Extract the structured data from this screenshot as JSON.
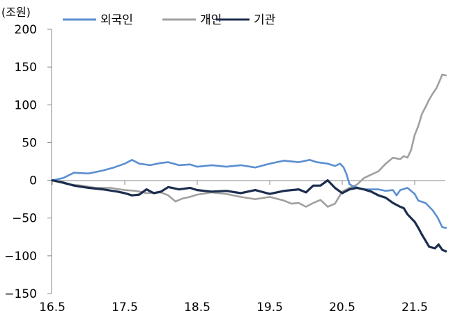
{
  "chart_data": {
    "type": "line",
    "unit_label": "(조원)",
    "xlabel": "",
    "ylabel": "",
    "x_ticks": [
      "16.5",
      "17.5",
      "18.5",
      "19.5",
      "20.5",
      "21.5"
    ],
    "y_ticks": [
      200,
      150,
      100,
      50,
      0,
      -50,
      -100,
      -150
    ],
    "y_tick_labels": [
      "200",
      "150",
      "100",
      "50",
      "0",
      "−50",
      "−100",
      "−150"
    ],
    "ylim": [
      -150,
      200
    ],
    "xlim": [
      "16.5",
      "21.8"
    ],
    "x_unit": "years since 16.5",
    "grid": false,
    "legend_position": "top",
    "series": [
      {
        "name": "외국인",
        "color": "#5b8fd0",
        "points": [
          [
            0,
            0
          ],
          [
            0.15,
            3
          ],
          [
            0.3,
            10
          ],
          [
            0.5,
            9
          ],
          [
            0.7,
            13
          ],
          [
            0.85,
            17
          ],
          [
            1.0,
            22
          ],
          [
            1.1,
            27
          ],
          [
            1.2,
            22
          ],
          [
            1.35,
            20
          ],
          [
            1.5,
            23
          ],
          [
            1.6,
            24
          ],
          [
            1.75,
            20
          ],
          [
            1.9,
            21
          ],
          [
            2.0,
            18
          ],
          [
            2.2,
            20
          ],
          [
            2.4,
            18
          ],
          [
            2.6,
            20
          ],
          [
            2.8,
            17
          ],
          [
            3.0,
            22
          ],
          [
            3.2,
            26
          ],
          [
            3.4,
            24
          ],
          [
            3.55,
            27
          ],
          [
            3.65,
            24
          ],
          [
            3.8,
            22
          ],
          [
            3.9,
            19
          ],
          [
            3.97,
            22
          ],
          [
            4.02,
            17
          ],
          [
            4.06,
            8
          ],
          [
            4.1,
            -5
          ],
          [
            4.15,
            -8
          ],
          [
            4.3,
            -12
          ],
          [
            4.5,
            -12
          ],
          [
            4.6,
            -14
          ],
          [
            4.7,
            -13
          ],
          [
            4.75,
            -20
          ],
          [
            4.8,
            -13
          ],
          [
            4.9,
            -10
          ],
          [
            5.0,
            -18
          ],
          [
            5.05,
            -27
          ],
          [
            5.15,
            -30
          ],
          [
            5.25,
            -40
          ],
          [
            5.32,
            -50
          ],
          [
            5.38,
            -62
          ],
          [
            5.43,
            -63
          ]
        ]
      },
      {
        "name": "개인",
        "color": "#a0a0a0",
        "points": [
          [
            0,
            0
          ],
          [
            0.2,
            -5
          ],
          [
            0.4,
            -7
          ],
          [
            0.6,
            -10
          ],
          [
            0.8,
            -10
          ],
          [
            1.0,
            -13
          ],
          [
            1.15,
            -14
          ],
          [
            1.3,
            -17
          ],
          [
            1.5,
            -16
          ],
          [
            1.6,
            -20
          ],
          [
            1.7,
            -28
          ],
          [
            1.8,
            -24
          ],
          [
            1.9,
            -22
          ],
          [
            2.0,
            -19
          ],
          [
            2.2,
            -16
          ],
          [
            2.4,
            -18
          ],
          [
            2.6,
            -22
          ],
          [
            2.8,
            -25
          ],
          [
            3.0,
            -22
          ],
          [
            3.2,
            -27
          ],
          [
            3.3,
            -31
          ],
          [
            3.4,
            -30
          ],
          [
            3.5,
            -35
          ],
          [
            3.6,
            -30
          ],
          [
            3.7,
            -26
          ],
          [
            3.8,
            -35
          ],
          [
            3.9,
            -31
          ],
          [
            4.0,
            -15
          ],
          [
            4.1,
            -10
          ],
          [
            4.2,
            -6
          ],
          [
            4.3,
            3
          ],
          [
            4.5,
            12
          ],
          [
            4.6,
            22
          ],
          [
            4.7,
            30
          ],
          [
            4.8,
            28
          ],
          [
            4.85,
            32
          ],
          [
            4.9,
            30
          ],
          [
            4.95,
            40
          ],
          [
            5.0,
            60
          ],
          [
            5.05,
            72
          ],
          [
            5.1,
            88
          ],
          [
            5.15,
            97
          ],
          [
            5.2,
            107
          ],
          [
            5.25,
            115
          ],
          [
            5.3,
            122
          ],
          [
            5.35,
            133
          ],
          [
            5.38,
            140
          ],
          [
            5.43,
            139
          ]
        ]
      },
      {
        "name": "기관",
        "color": "#1c2e4e",
        "points": [
          [
            0,
            0
          ],
          [
            0.15,
            -3
          ],
          [
            0.3,
            -7
          ],
          [
            0.5,
            -10
          ],
          [
            0.7,
            -12
          ],
          [
            0.9,
            -15
          ],
          [
            1.0,
            -17
          ],
          [
            1.1,
            -20
          ],
          [
            1.2,
            -19
          ],
          [
            1.3,
            -12
          ],
          [
            1.4,
            -17
          ],
          [
            1.5,
            -15
          ],
          [
            1.6,
            -9
          ],
          [
            1.75,
            -12
          ],
          [
            1.9,
            -10
          ],
          [
            2.0,
            -13
          ],
          [
            2.2,
            -15
          ],
          [
            2.4,
            -14
          ],
          [
            2.6,
            -17
          ],
          [
            2.8,
            -13
          ],
          [
            3.0,
            -18
          ],
          [
            3.2,
            -14
          ],
          [
            3.4,
            -12
          ],
          [
            3.5,
            -16
          ],
          [
            3.6,
            -7
          ],
          [
            3.7,
            -7
          ],
          [
            3.8,
            0
          ],
          [
            3.85,
            -5
          ],
          [
            3.9,
            -10
          ],
          [
            4.0,
            -17
          ],
          [
            4.1,
            -12
          ],
          [
            4.2,
            -10
          ],
          [
            4.3,
            -12
          ],
          [
            4.4,
            -15
          ],
          [
            4.5,
            -20
          ],
          [
            4.6,
            -23
          ],
          [
            4.7,
            -30
          ],
          [
            4.8,
            -35
          ],
          [
            4.85,
            -37
          ],
          [
            4.9,
            -45
          ],
          [
            4.95,
            -50
          ],
          [
            5.0,
            -55
          ],
          [
            5.05,
            -63
          ],
          [
            5.1,
            -72
          ],
          [
            5.15,
            -80
          ],
          [
            5.2,
            -88
          ],
          [
            5.28,
            -90
          ],
          [
            5.33,
            -85
          ],
          [
            5.38,
            -92
          ],
          [
            5.43,
            -94
          ]
        ]
      }
    ]
  }
}
